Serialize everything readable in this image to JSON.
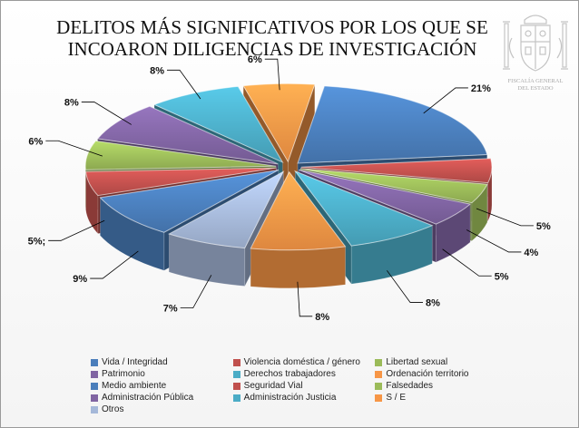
{
  "chart_data": {
    "type": "pie",
    "title": "DELITOS MÁS SIGNIFICATIVOS POR LOS QUE SE INCOARON DILIGENCIAS DE INVESTIGACIÓN",
    "legend_position": "bottom",
    "slices": [
      {
        "name": "Vida / Integridad",
        "value": 21,
        "label": "21%",
        "color": "#4a7ebb"
      },
      {
        "name": "Violencia doméstica / género",
        "value": 5,
        "label": "5%",
        "color": "#c0504d"
      },
      {
        "name": "Libertad sexual",
        "value": 4,
        "label": "4%",
        "color": "#9bbb59"
      },
      {
        "name": "Patrimonio",
        "value": 5,
        "label": "5%",
        "color": "#8064a2"
      },
      {
        "name": "Derechos trabajadores",
        "value": 8,
        "label": "8%",
        "color": "#4bacc6"
      },
      {
        "name": "Ordenación territorio",
        "value": 8,
        "label": "8%",
        "color": "#f79646"
      },
      {
        "name": "Medio ambiente",
        "value": 7,
        "label": "7%",
        "color": "#a5b8d9"
      },
      {
        "name": "Seguridad Vial",
        "value": 9,
        "label": "9%",
        "color": "#4a7ebb"
      },
      {
        "name": "Falsedades",
        "value": 5,
        "label": "5%;",
        "color": "#c0504d"
      },
      {
        "name": "Administración Pública",
        "value": 6,
        "label": "6%",
        "color": "#9bbb59"
      },
      {
        "name": "Administración Justicia",
        "value": 8,
        "label": "8%",
        "color": "#8064a2"
      },
      {
        "name": "S / E",
        "value": 8,
        "label": "8%",
        "color": "#4bacc6"
      },
      {
        "name": "Otros",
        "value": 6,
        "label": "6%",
        "color": "#f79646"
      }
    ]
  },
  "legend": [
    [
      {
        "label": "Vida / Integridad",
        "color": "#4a7ebb"
      },
      {
        "label": "Violencia doméstica / género",
        "color": "#c0504d"
      },
      {
        "label": "Libertad sexual",
        "color": "#9bbb59"
      }
    ],
    [
      {
        "label": "Patrimonio",
        "color": "#8064a2"
      },
      {
        "label": "Derechos trabajadores",
        "color": "#4bacc6"
      },
      {
        "label": "Ordenación territorio",
        "color": "#f79646"
      }
    ],
    [
      {
        "label": "Medio ambiente",
        "color": "#4a7ebb"
      },
      {
        "label": "Seguridad Vial",
        "color": "#c0504d"
      },
      {
        "label": "Falsedades",
        "color": "#9bbb59"
      }
    ],
    [
      {
        "label": "Administración Pública",
        "color": "#8064a2"
      },
      {
        "label": "Administración Justicia",
        "color": "#4bacc6"
      },
      {
        "label": "S / E",
        "color": "#f79646"
      }
    ],
    [
      {
        "label": "Otros",
        "color": "#a5b8d9"
      }
    ]
  ],
  "seal": {
    "icon": "coat-of-arms-icon",
    "caption_line1": "FISCALÍA GENERAL",
    "caption_line2": "DEL ESTADO"
  }
}
